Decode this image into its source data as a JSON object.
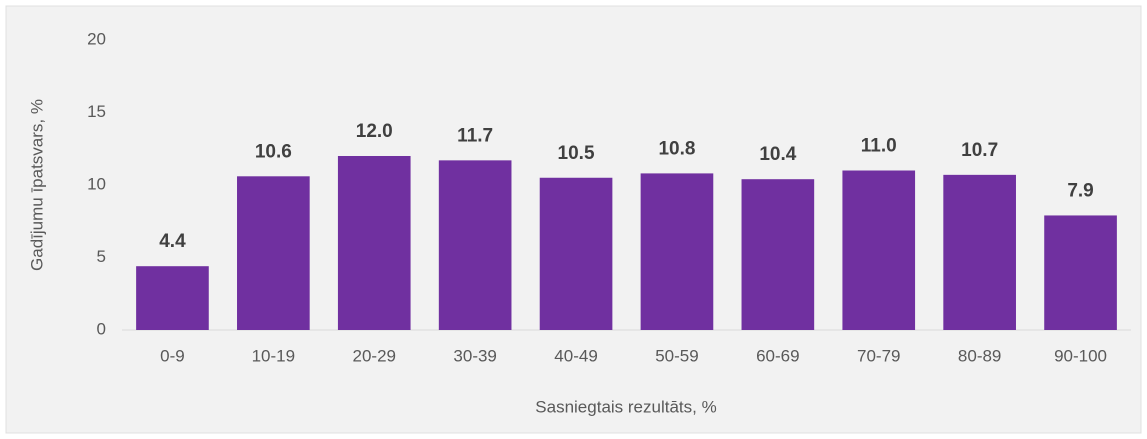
{
  "chart_data": {
    "type": "bar",
    "categories": [
      "0-9",
      "10-19",
      "20-29",
      "30-39",
      "40-49",
      "50-59",
      "60-69",
      "70-79",
      "80-89",
      "90-100"
    ],
    "values": [
      4.4,
      10.6,
      12.0,
      11.7,
      10.5,
      10.8,
      10.4,
      11.0,
      10.7,
      7.9
    ],
    "value_labels": [
      "4.4",
      "10.6",
      "12.0",
      "11.7",
      "10.5",
      "10.8",
      "10.4",
      "11.0",
      "10.7",
      "7.9"
    ],
    "color": "#7030a0",
    "ylim": [
      0,
      20
    ],
    "yticks": [
      0,
      5,
      10,
      15,
      20
    ],
    "grid": false,
    "ylabel": "Gadījumu īpatsvars, %",
    "xlabel": "Sasniegtais rezultāts, %"
  }
}
